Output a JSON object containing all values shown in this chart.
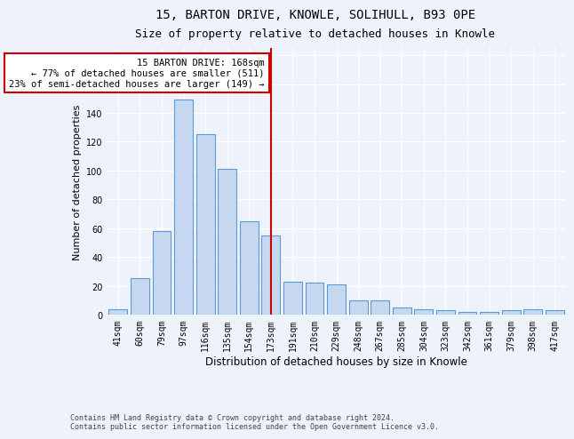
{
  "title": "15, BARTON DRIVE, KNOWLE, SOLIHULL, B93 0PE",
  "subtitle": "Size of property relative to detached houses in Knowle",
  "xlabel": "Distribution of detached houses by size in Knowle",
  "ylabel": "Number of detached properties",
  "categories": [
    "41sqm",
    "60sqm",
    "79sqm",
    "97sqm",
    "116sqm",
    "135sqm",
    "154sqm",
    "173sqm",
    "191sqm",
    "210sqm",
    "229sqm",
    "248sqm",
    "267sqm",
    "285sqm",
    "304sqm",
    "323sqm",
    "342sqm",
    "361sqm",
    "379sqm",
    "398sqm",
    "417sqm"
  ],
  "values": [
    4,
    25,
    58,
    149,
    125,
    101,
    65,
    55,
    23,
    22,
    21,
    10,
    10,
    5,
    4,
    3,
    2,
    2,
    3,
    4,
    3
  ],
  "bar_color": "#c5d8f0",
  "bar_edge_color": "#5b9bd5",
  "background_color": "#eef2fa",
  "grid_color": "#ffffff",
  "annotation_text": "15 BARTON DRIVE: 168sqm\n← 77% of detached houses are smaller (511)\n23% of semi-detached houses are larger (149) →",
  "annotation_box_color": "#ffffff",
  "annotation_box_edge": "#cc0000",
  "vline_x_index": 7,
  "vline_color": "#cc0000",
  "ylim": [
    0,
    185
  ],
  "yticks": [
    0,
    20,
    40,
    60,
    80,
    100,
    120,
    140,
    160,
    180
  ],
  "footer": "Contains HM Land Registry data © Crown copyright and database right 2024.\nContains public sector information licensed under the Open Government Licence v3.0.",
  "title_fontsize": 10,
  "subtitle_fontsize": 9,
  "xlabel_fontsize": 8.5,
  "ylabel_fontsize": 8,
  "tick_fontsize": 7,
  "annotation_fontsize": 7.5,
  "footer_fontsize": 6
}
